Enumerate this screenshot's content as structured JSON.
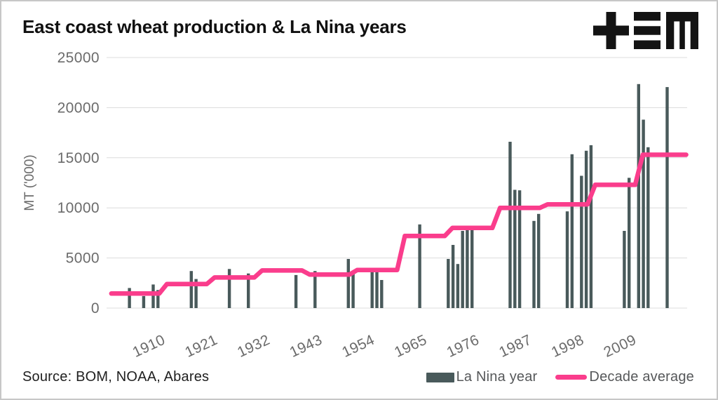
{
  "header": {
    "title": "East coast wheat production & La Nina years",
    "logo": {
      "color": "#131313",
      "glyphs": [
        "plus-icon",
        "triple-bar-icon",
        "m-icon"
      ]
    }
  },
  "footer": {
    "source": "Source: BOM, NOAA, Abares"
  },
  "legend": {
    "bar_label": "La Nina year",
    "line_label": "Decade average"
  },
  "colors": {
    "bar": "#495a5b",
    "line": "#fa3d8c",
    "grid": "#dcdcdc",
    "tick_text": "#6b6b6b",
    "title_text": "#101010",
    "border": "#c7c7c7"
  },
  "chart_data": {
    "type": "bar",
    "title": "East coast wheat production & La Nina years",
    "xlabel": "",
    "ylabel": "MT ('000)",
    "ylim": [
      0,
      25000
    ],
    "yticks": [
      0,
      5000,
      10000,
      15000,
      20000,
      25000
    ],
    "xticks": [
      1910,
      1921,
      1932,
      1943,
      1954,
      1965,
      1976,
      1987,
      1998,
      2009
    ],
    "x_domain": [
      1898.2,
      2020.2
    ],
    "grid": "horizontal-only",
    "legend_position": "bottom-right",
    "bar_series": {
      "name": "La Nina year",
      "color": "#495a5b",
      "points": [
        [
          1903,
          2000
        ],
        [
          1906,
          1200
        ],
        [
          1908,
          2350
        ],
        [
          1909,
          1800
        ],
        [
          1916,
          3700
        ],
        [
          1917,
          2900
        ],
        [
          1924,
          3900
        ],
        [
          1928,
          3450
        ],
        [
          1938,
          3300
        ],
        [
          1942,
          3700
        ],
        [
          1949,
          4900
        ],
        [
          1950,
          3700
        ],
        [
          1954,
          3900
        ],
        [
          1955,
          3850
        ],
        [
          1956,
          2800
        ],
        [
          1964,
          8350
        ],
        [
          1970,
          4900
        ],
        [
          1971,
          6300
        ],
        [
          1972,
          4400
        ],
        [
          1973,
          7700
        ],
        [
          1974,
          7900
        ],
        [
          1975,
          7900
        ],
        [
          1983,
          16600
        ],
        [
          1984,
          11800
        ],
        [
          1985,
          11750
        ],
        [
          1988,
          8700
        ],
        [
          1989,
          9400
        ],
        [
          1995,
          9650
        ],
        [
          1996,
          15350
        ],
        [
          1998,
          13200
        ],
        [
          1999,
          15700
        ],
        [
          2000,
          16250
        ],
        [
          2007,
          7700
        ],
        [
          2008,
          13000
        ],
        [
          2010,
          22350
        ],
        [
          2011,
          18800
        ],
        [
          2012,
          16050
        ],
        [
          2016,
          22050
        ]
      ]
    },
    "line_series": {
      "name": "Decade average",
      "color": "#fa3d8c",
      "type": "step",
      "start_year": 1899.2,
      "end_year": 2020,
      "decades": [
        [
          1900,
          1450
        ],
        [
          1910,
          2400
        ],
        [
          1920,
          3050
        ],
        [
          1930,
          3750
        ],
        [
          1940,
          3350
        ],
        [
          1950,
          3800
        ],
        [
          1960,
          7200
        ],
        [
          1970,
          8000
        ],
        [
          1980,
          10000
        ],
        [
          1990,
          10350
        ],
        [
          2000,
          12300
        ],
        [
          2010,
          15300
        ]
      ]
    }
  }
}
